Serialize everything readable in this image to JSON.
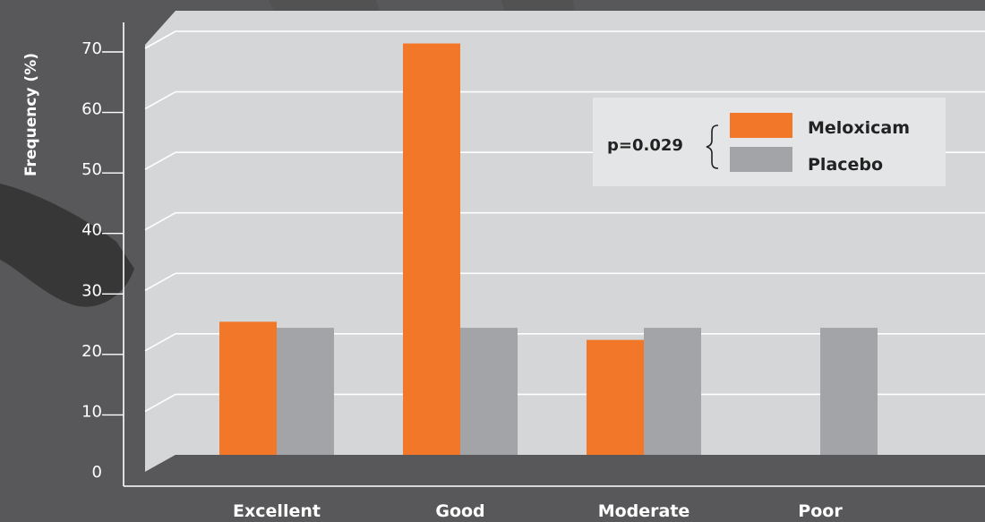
{
  "chart_data": {
    "type": "bar",
    "ylabel": "Frequency (%)",
    "xlabel": "",
    "ylim": [
      0,
      70
    ],
    "yticks": [
      0,
      10,
      20,
      30,
      40,
      50,
      60,
      70
    ],
    "categories": [
      "Excellent",
      "Good",
      "Moderate",
      "Poor"
    ],
    "series": [
      {
        "name": "Meloxicam",
        "color": "#f37729",
        "values": [
          22,
          68,
          19,
          0
        ]
      },
      {
        "name": "Placebo",
        "color": "#a3a4a8",
        "values": [
          21,
          21,
          21,
          21
        ]
      }
    ],
    "annotation": "p=0.029",
    "legend_position": "top-right",
    "grid": true
  },
  "colors": {
    "background": "#58585a",
    "panel": "#d5d6d8",
    "floor": "#58585a",
    "grid": "#ffffff"
  }
}
